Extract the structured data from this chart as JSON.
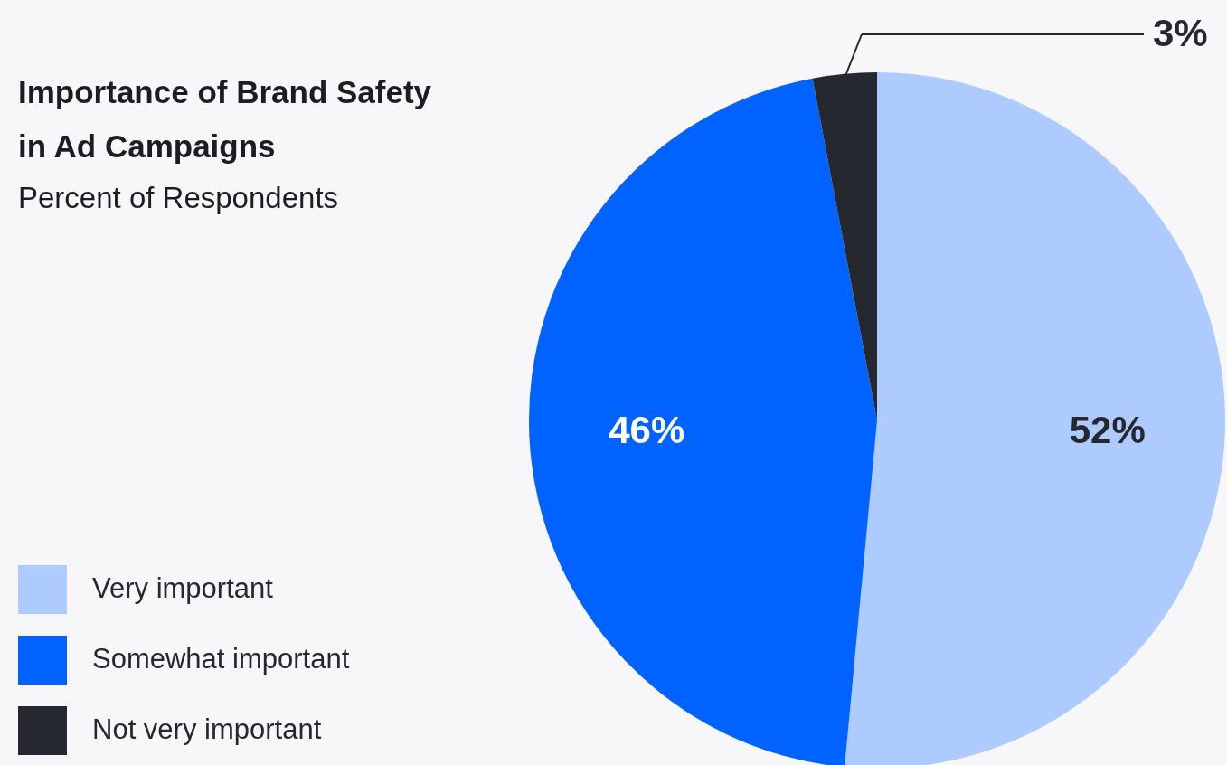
{
  "chart_data": {
    "type": "pie",
    "title": "Importance of Brand Safety\nin Ad Campaigns",
    "subtitle": "Percent of Respondents",
    "categories": [
      "Very important",
      "Somewhat important",
      "Not very important"
    ],
    "values": [
      52,
      46,
      3
    ],
    "colors": [
      "#adcbff",
      "#0062ff",
      "#25282e"
    ],
    "value_labels": [
      "52%",
      "46%",
      "3%"
    ],
    "legend": "bottom left"
  }
}
